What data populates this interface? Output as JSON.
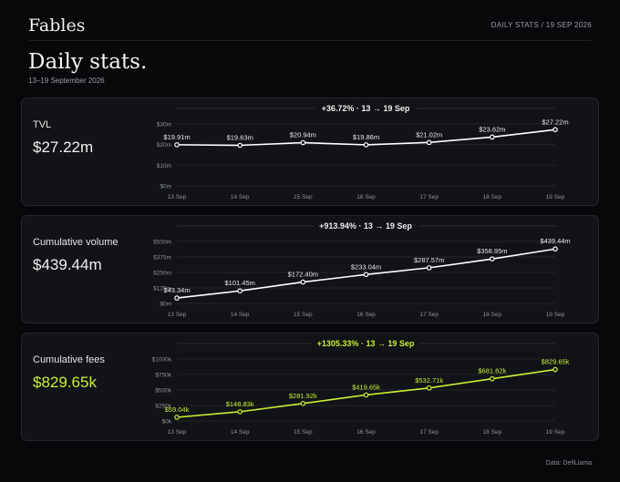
{
  "header": {
    "brand": "Fables",
    "top_right": "DAILY STATS / 19 SEP 2026",
    "title": "Daily stats.",
    "subtitle": "13–19 September 2026"
  },
  "footer": {
    "source": "Data: DefiLlama"
  },
  "colors": {
    "line": "#ffffff",
    "accent": "#c8ef35",
    "axis": "#8e9299",
    "grid": "#23252a"
  },
  "chart_data": [
    {
      "type": "line",
      "label": "TVL",
      "value": "$27.22m",
      "title": "+36.72% · 13 → 19 Sep",
      "categories": [
        "13 Sep",
        "14 Sep",
        "15 Sep",
        "16 Sep",
        "17 Sep",
        "18 Sep",
        "19 Sep"
      ],
      "values": [
        19.91,
        19.63,
        20.94,
        19.86,
        21.02,
        23.62,
        27.22
      ],
      "data_labels": [
        "$19.91m",
        "$19.63m",
        "$20.94m",
        "$19.86m",
        "$21.02m",
        "$23.62m",
        "$27.22m"
      ],
      "yticks": [
        0,
        10,
        20,
        30
      ],
      "ytick_labels": [
        "$0m",
        "$10m",
        "$20m",
        "$30m"
      ],
      "ylim": [
        0,
        30
      ],
      "accent": false
    },
    {
      "type": "line",
      "label": "Cumulative volume",
      "value": "$439.44m",
      "title": "+913.94% · 13 → 19 Sep",
      "categories": [
        "13 Sep",
        "14 Sep",
        "15 Sep",
        "16 Sep",
        "17 Sep",
        "18 Sep",
        "19 Sep"
      ],
      "values": [
        43.34,
        101.45,
        172.4,
        233.04,
        287.57,
        358.95,
        439.44
      ],
      "data_labels": [
        "$43.34m",
        "$101.45m",
        "$172.40m",
        "$233.04m",
        "$287.57m",
        "$358.95m",
        "$439.44m"
      ],
      "yticks": [
        0,
        125,
        250,
        375,
        500
      ],
      "ytick_labels": [
        "$0m",
        "$125m",
        "$250m",
        "$375m",
        "$500m"
      ],
      "ylim": [
        0,
        500
      ],
      "accent": false
    },
    {
      "type": "line",
      "label": "Cumulative fees",
      "value": "$829.65k",
      "title": "+1305.33% · 13 → 19 Sep",
      "categories": [
        "13 Sep",
        "14 Sep",
        "15 Sep",
        "16 Sep",
        "17 Sep",
        "18 Sep",
        "19 Sep"
      ],
      "values": [
        59.04,
        148.83,
        281.92,
        419.65,
        532.71,
        681.62,
        829.65
      ],
      "data_labels": [
        "$59.04k",
        "$148.83k",
        "$281.92k",
        "$419.65k",
        "$532.71k",
        "$681.62k",
        "$829.65k"
      ],
      "yticks": [
        0,
        250,
        500,
        750,
        1000
      ],
      "ytick_labels": [
        "$0k",
        "$250k",
        "$500k",
        "$750k",
        "$1000k"
      ],
      "ylim": [
        0,
        1000
      ],
      "accent": true
    }
  ]
}
